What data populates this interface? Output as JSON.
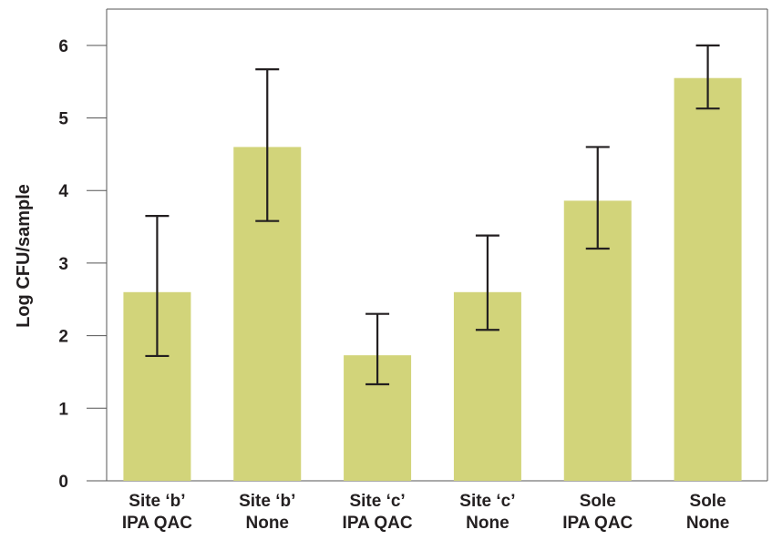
{
  "chart_data": {
    "type": "bar",
    "ylabel": "Log CFU/sample",
    "xlabel": "",
    "title": "",
    "ylim": [
      0,
      6.5
    ],
    "yticks": [
      "0",
      "1",
      "2",
      "3",
      "4",
      "5",
      "6"
    ],
    "categories": [
      [
        "Site ‘b’",
        "IPA QAC"
      ],
      [
        "Site ‘b’",
        "None"
      ],
      [
        "Site ‘c’",
        "IPA QAC"
      ],
      [
        "Site ‘c’",
        "None"
      ],
      [
        "Sole",
        "IPA QAC"
      ],
      [
        "Sole",
        "None"
      ]
    ],
    "values": [
      2.6,
      4.6,
      1.73,
      2.6,
      3.86,
      5.55
    ],
    "error_low": [
      1.72,
      3.58,
      1.33,
      2.08,
      3.2,
      5.13
    ],
    "error_high": [
      3.65,
      5.67,
      2.3,
      3.38,
      4.6,
      6.0
    ],
    "grid": false,
    "bar_color": "#d2d47a",
    "error_color": "#231f20",
    "axis_color": "#555555"
  }
}
